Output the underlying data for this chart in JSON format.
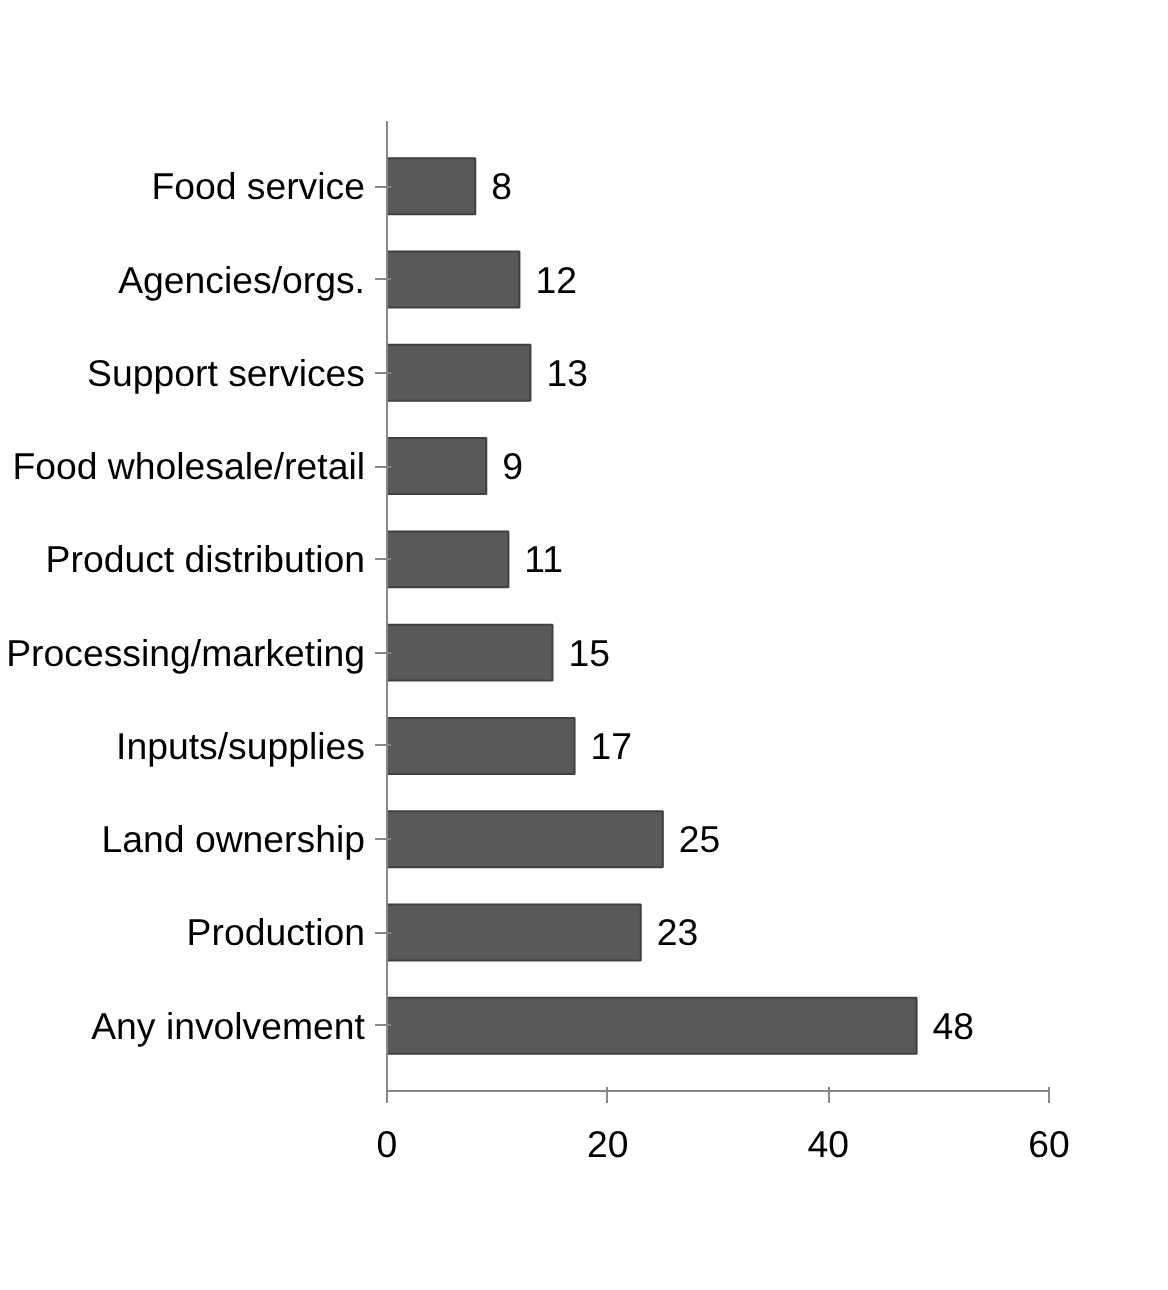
{
  "chart_data": {
    "type": "bar",
    "orientation": "horizontal",
    "categories": [
      "Food service",
      "Agencies/orgs.",
      "Support services",
      "Food wholesale/retail",
      "Product distribution",
      "Processing/marketing",
      "Inputs/supplies",
      "Land ownership",
      "Production",
      "Any involvement"
    ],
    "values": [
      8,
      12,
      13,
      9,
      11,
      15,
      17,
      25,
      23,
      48
    ],
    "color": "#595959",
    "xlim": [
      0,
      60
    ],
    "xticks": [
      0,
      20,
      40,
      60
    ],
    "data_labels": true,
    "grid": false
  }
}
